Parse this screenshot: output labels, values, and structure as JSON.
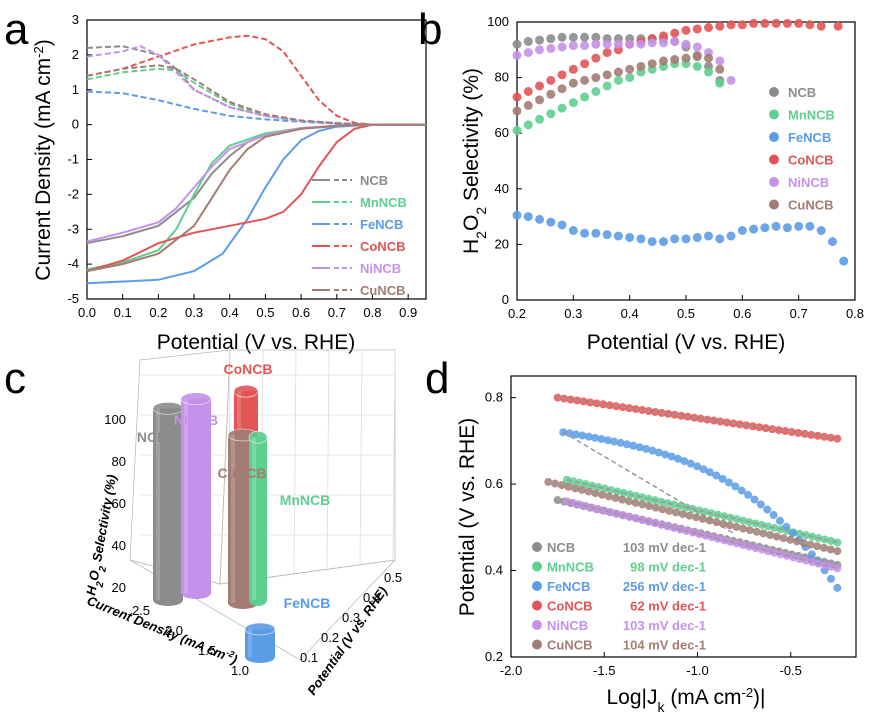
{
  "colors": {
    "NCB": "#8c8c8c",
    "MnNCB": "#5fcf8f",
    "FeNCB": "#5b9ce6",
    "CoNCB": "#e35454",
    "NiNCB": "#c591ea",
    "CuNCB": "#a37d73"
  },
  "chart_data": [
    {
      "panel": "a",
      "type": "line",
      "title": "",
      "xlabel": "Potential (V vs. RHE)",
      "ylabel": "Current Density (mA cm-2)",
      "xlim": [
        0.0,
        0.95
      ],
      "ylim": [
        -5,
        3
      ],
      "xticks": [
        "0.0",
        "0.1",
        "0.2",
        "0.3",
        "0.4",
        "0.5",
        "0.6",
        "0.7",
        "0.8",
        "0.9"
      ],
      "yticks": [
        "-5",
        "-4",
        "-3",
        "-2",
        "-1",
        "0",
        "1",
        "2",
        "3"
      ],
      "legend": [
        "NCB",
        "MnNCB",
        "FeNCB",
        "CoNCB",
        "NiNCB",
        "CuNCB"
      ],
      "series": [
        {
          "name": "NCB",
          "disk": [
            [
              0.0,
              -3.4
            ],
            [
              0.1,
              -3.2
            ],
            [
              0.2,
              -2.9
            ],
            [
              0.3,
              -2.1
            ],
            [
              0.35,
              -1.4
            ],
            [
              0.4,
              -0.9
            ],
            [
              0.45,
              -0.5
            ],
            [
              0.5,
              -0.3
            ],
            [
              0.6,
              -0.12
            ],
            [
              0.7,
              -0.04
            ],
            [
              0.8,
              0.0
            ],
            [
              0.95,
              0.0
            ]
          ],
          "ring": [
            [
              0.0,
              2.2
            ],
            [
              0.1,
              2.25
            ],
            [
              0.2,
              2.0
            ],
            [
              0.25,
              1.6
            ],
            [
              0.3,
              1.0
            ],
            [
              0.4,
              0.5
            ],
            [
              0.5,
              0.25
            ],
            [
              0.6,
              0.1
            ],
            [
              0.7,
              0.04
            ],
            [
              0.8,
              0.0
            ],
            [
              0.95,
              0.0
            ]
          ]
        },
        {
          "name": "MnNCB",
          "disk": [
            [
              0.0,
              -4.15
            ],
            [
              0.1,
              -3.95
            ],
            [
              0.2,
              -3.6
            ],
            [
              0.25,
              -3.0
            ],
            [
              0.3,
              -2.0
            ],
            [
              0.35,
              -1.1
            ],
            [
              0.4,
              -0.6
            ],
            [
              0.5,
              -0.25
            ],
            [
              0.6,
              -0.1
            ],
            [
              0.7,
              -0.03
            ],
            [
              0.8,
              0.0
            ],
            [
              0.95,
              0.0
            ]
          ],
          "ring": [
            [
              0.0,
              1.3
            ],
            [
              0.1,
              1.5
            ],
            [
              0.2,
              1.6
            ],
            [
              0.25,
              1.55
            ],
            [
              0.3,
              1.2
            ],
            [
              0.4,
              0.6
            ],
            [
              0.5,
              0.25
            ],
            [
              0.6,
              0.1
            ],
            [
              0.7,
              0.04
            ],
            [
              0.8,
              0.0
            ],
            [
              0.95,
              0.0
            ]
          ]
        },
        {
          "name": "FeNCB",
          "disk": [
            [
              0.0,
              -4.55
            ],
            [
              0.2,
              -4.45
            ],
            [
              0.3,
              -4.2
            ],
            [
              0.38,
              -3.7
            ],
            [
              0.45,
              -2.7
            ],
            [
              0.5,
              -1.8
            ],
            [
              0.55,
              -1.0
            ],
            [
              0.6,
              -0.45
            ],
            [
              0.65,
              -0.18
            ],
            [
              0.7,
              -0.06
            ],
            [
              0.8,
              0.0
            ],
            [
              0.95,
              0.0
            ]
          ],
          "ring": [
            [
              0.0,
              0.95
            ],
            [
              0.1,
              0.9
            ],
            [
              0.2,
              0.7
            ],
            [
              0.3,
              0.45
            ],
            [
              0.4,
              0.25
            ],
            [
              0.5,
              0.15
            ],
            [
              0.6,
              0.08
            ],
            [
              0.7,
              0.03
            ],
            [
              0.8,
              0.0
            ],
            [
              0.95,
              0.0
            ]
          ]
        },
        {
          "name": "CoNCB",
          "disk": [
            [
              0.0,
              -4.2
            ],
            [
              0.1,
              -3.9
            ],
            [
              0.2,
              -3.4
            ],
            [
              0.3,
              -3.1
            ],
            [
              0.4,
              -2.9
            ],
            [
              0.5,
              -2.7
            ],
            [
              0.55,
              -2.5
            ],
            [
              0.6,
              -2.0
            ],
            [
              0.65,
              -1.2
            ],
            [
              0.7,
              -0.5
            ],
            [
              0.75,
              -0.12
            ],
            [
              0.8,
              0.0
            ],
            [
              0.95,
              0.0
            ]
          ],
          "ring": [
            [
              0.0,
              1.4
            ],
            [
              0.1,
              1.6
            ],
            [
              0.2,
              1.95
            ],
            [
              0.3,
              2.3
            ],
            [
              0.4,
              2.5
            ],
            [
              0.45,
              2.55
            ],
            [
              0.5,
              2.45
            ],
            [
              0.55,
              2.1
            ],
            [
              0.6,
              1.4
            ],
            [
              0.65,
              0.7
            ],
            [
              0.7,
              0.25
            ],
            [
              0.75,
              0.05
            ],
            [
              0.8,
              0.0
            ],
            [
              0.95,
              0.0
            ]
          ]
        },
        {
          "name": "NiNCB",
          "disk": [
            [
              0.0,
              -3.35
            ],
            [
              0.1,
              -3.1
            ],
            [
              0.2,
              -2.8
            ],
            [
              0.25,
              -2.4
            ],
            [
              0.3,
              -1.8
            ],
            [
              0.35,
              -1.2
            ],
            [
              0.4,
              -0.7
            ],
            [
              0.5,
              -0.3
            ],
            [
              0.6,
              -0.1
            ],
            [
              0.7,
              -0.03
            ],
            [
              0.8,
              0.0
            ],
            [
              0.95,
              0.0
            ]
          ],
          "ring": [
            [
              0.0,
              1.95
            ],
            [
              0.1,
              2.1
            ],
            [
              0.15,
              2.25
            ],
            [
              0.2,
              2.0
            ],
            [
              0.25,
              1.5
            ],
            [
              0.3,
              1.0
            ],
            [
              0.4,
              0.5
            ],
            [
              0.5,
              0.25
            ],
            [
              0.6,
              0.1
            ],
            [
              0.7,
              0.03
            ],
            [
              0.8,
              0.0
            ],
            [
              0.95,
              0.0
            ]
          ]
        },
        {
          "name": "CuNCB",
          "disk": [
            [
              0.0,
              -4.2
            ],
            [
              0.1,
              -4.0
            ],
            [
              0.2,
              -3.7
            ],
            [
              0.3,
              -2.9
            ],
            [
              0.35,
              -2.1
            ],
            [
              0.4,
              -1.3
            ],
            [
              0.45,
              -0.7
            ],
            [
              0.5,
              -0.35
            ],
            [
              0.6,
              -0.12
            ],
            [
              0.7,
              -0.03
            ],
            [
              0.8,
              0.0
            ],
            [
              0.95,
              0.0
            ]
          ],
          "ring": [
            [
              0.0,
              1.4
            ],
            [
              0.1,
              1.6
            ],
            [
              0.2,
              1.7
            ],
            [
              0.25,
              1.6
            ],
            [
              0.3,
              1.3
            ],
            [
              0.4,
              0.65
            ],
            [
              0.5,
              0.3
            ],
            [
              0.6,
              0.12
            ],
            [
              0.7,
              0.04
            ],
            [
              0.8,
              0.0
            ],
            [
              0.95,
              0.0
            ]
          ]
        }
      ]
    },
    {
      "panel": "b",
      "type": "scatter",
      "title": "",
      "xlabel": "Potential (V vs. RHE)",
      "ylabel": "H2O2 Selectivity (%)",
      "xlim": [
        0.2,
        0.8
      ],
      "ylim": [
        0,
        100
      ],
      "xticks": [
        "0.2",
        "0.3",
        "0.4",
        "0.5",
        "0.6",
        "0.7",
        "0.8"
      ],
      "yticks": [
        "0",
        "20",
        "40",
        "60",
        "80",
        "100"
      ],
      "legend": [
        "NCB",
        "MnNCB",
        "FeNCB",
        "CoNCB",
        "NiNCB",
        "CuNCB"
      ],
      "series": [
        {
          "name": "NCB",
          "x": [
            0.2,
            0.22,
            0.24,
            0.26,
            0.28,
            0.3,
            0.32,
            0.34,
            0.36,
            0.38,
            0.4,
            0.42,
            0.44,
            0.46,
            0.48,
            0.5,
            0.52,
            0.54,
            0.56
          ],
          "y": [
            92,
            93,
            93.5,
            94,
            94.5,
            94.5,
            94.5,
            94.5,
            94,
            94,
            94,
            94,
            94,
            94,
            93,
            91,
            88,
            84,
            79
          ]
        },
        {
          "name": "MnNCB",
          "x": [
            0.2,
            0.22,
            0.24,
            0.26,
            0.28,
            0.3,
            0.32,
            0.34,
            0.36,
            0.38,
            0.4,
            0.42,
            0.44,
            0.46,
            0.48,
            0.5,
            0.52,
            0.54,
            0.56
          ],
          "y": [
            61,
            63,
            65,
            67,
            69,
            71,
            73,
            75,
            77,
            79,
            80,
            82,
            83,
            84,
            85,
            85,
            84,
            82,
            78
          ]
        },
        {
          "name": "FeNCB",
          "x": [
            0.2,
            0.22,
            0.24,
            0.26,
            0.28,
            0.3,
            0.32,
            0.34,
            0.36,
            0.38,
            0.4,
            0.42,
            0.44,
            0.46,
            0.48,
            0.5,
            0.52,
            0.54,
            0.56,
            0.58,
            0.6,
            0.62,
            0.64,
            0.66,
            0.68,
            0.7,
            0.72,
            0.74,
            0.76,
            0.78
          ],
          "y": [
            30.5,
            30,
            29,
            28,
            27,
            25,
            24,
            24,
            23.5,
            23,
            22.5,
            22,
            21,
            21,
            22,
            22,
            22.5,
            23,
            22,
            23,
            25,
            25.5,
            26,
            26.5,
            26,
            26.5,
            26.5,
            25,
            21,
            14
          ]
        },
        {
          "name": "CoNCB",
          "x": [
            0.2,
            0.22,
            0.24,
            0.26,
            0.28,
            0.3,
            0.32,
            0.34,
            0.36,
            0.38,
            0.4,
            0.42,
            0.44,
            0.46,
            0.48,
            0.5,
            0.52,
            0.54,
            0.56,
            0.58,
            0.6,
            0.62,
            0.64,
            0.66,
            0.68,
            0.7,
            0.72,
            0.74,
            0.77
          ],
          "y": [
            73,
            75,
            77,
            79,
            81,
            83,
            85,
            87,
            89,
            90,
            92,
            93,
            94,
            95,
            96,
            97,
            97.5,
            98,
            98.5,
            99,
            99,
            99.5,
            99.5,
            99.5,
            99.5,
            99.5,
            99,
            98.5,
            98.5
          ]
        },
        {
          "name": "NiNCB",
          "x": [
            0.2,
            0.22,
            0.24,
            0.26,
            0.28,
            0.3,
            0.32,
            0.34,
            0.36,
            0.38,
            0.4,
            0.42,
            0.44,
            0.46,
            0.48,
            0.5,
            0.52,
            0.54,
            0.56,
            0.58
          ],
          "y": [
            88,
            89,
            90,
            90.5,
            91,
            91.5,
            91.5,
            92,
            92,
            92,
            92,
            92,
            92.5,
            92.5,
            93,
            92,
            91,
            89,
            86,
            79
          ]
        },
        {
          "name": "CuNCB",
          "x": [
            0.2,
            0.22,
            0.24,
            0.26,
            0.28,
            0.3,
            0.32,
            0.34,
            0.36,
            0.38,
            0.4,
            0.42,
            0.44,
            0.46,
            0.48,
            0.5,
            0.52,
            0.54,
            0.56
          ],
          "y": [
            68,
            70,
            72,
            74,
            76,
            78,
            79,
            80,
            81,
            82,
            83,
            84,
            85,
            86,
            86.5,
            87,
            87.5,
            87,
            83
          ]
        }
      ]
    },
    {
      "panel": "c",
      "type": "bar",
      "title": "",
      "xlabel": "Current Density (mA cm-2)",
      "ylabel": "H2O2 Selectivity (%)",
      "zlabel": "Potential (V vs. RHE)",
      "current_ticks": [
        "1.0",
        "1.5",
        "2.0",
        "2.5"
      ],
      "selectivity_ticks": [
        "20",
        "40",
        "60",
        "80",
        "100"
      ],
      "potential_ticks": [
        "0.1",
        "0.2",
        "0.3",
        "0.4",
        "0.5"
      ],
      "bars": [
        {
          "name": "NCB",
          "selectivity": 93,
          "current_density": 2.3,
          "potential": 0.32
        },
        {
          "name": "MnNCB",
          "selectivity": 82,
          "current_density": 2.0,
          "potential": 0.5
        },
        {
          "name": "FeNCB",
          "selectivity": 30,
          "current_density": 0.95,
          "potential": 0.33
        },
        {
          "name": "CoNCB",
          "selectivity": 100,
          "current_density": 2.35,
          "potential": 0.48
        },
        {
          "name": "NiNCB",
          "selectivity": 94,
          "current_density": 2.2,
          "potential": 0.35
        },
        {
          "name": "CuNCB",
          "selectivity": 84,
          "current_density": 2.0,
          "potential": 0.45
        }
      ]
    },
    {
      "panel": "d",
      "type": "scatter",
      "title": "",
      "xlabel": "Log|Jk (mA cm-2)|",
      "ylabel": "Potential (V vs. RHE)",
      "xlim": [
        -2.0,
        -0.15
      ],
      "ylim": [
        0.2,
        0.85
      ],
      "xticks": [
        "-2.0",
        "-1.5",
        "-1.0",
        "-0.5"
      ],
      "yticks": [
        "0.2",
        "0.4",
        "0.6",
        "0.8"
      ],
      "series": [
        {
          "name": "NCB",
          "tafel": "103 mV dec-1",
          "x0": -1.75,
          "x1": -0.25,
          "y0": 0.563,
          "y1": 0.413
        },
        {
          "name": "MnNCB",
          "tafel": "98 mV dec-1",
          "x0": -1.7,
          "x1": -0.25,
          "y0": 0.61,
          "y1": 0.465
        },
        {
          "name": "FeNCB",
          "tafel": "256 mV dec-1",
          "x0": -1.72,
          "x1": -0.25,
          "y0": 0.72,
          "y1": 0.36
        },
        {
          "name": "CoNCB",
          "tafel": "62 mV dec-1",
          "x0": -1.75,
          "x1": -0.25,
          "y0": 0.8,
          "y1": 0.705
        },
        {
          "name": "NiNCB",
          "tafel": "103 mV dec-1",
          "x0": -1.7,
          "x1": -0.25,
          "y0": 0.56,
          "y1": 0.405
        },
        {
          "name": "CuNCB",
          "tafel": "104 mV dec-1",
          "x0": -1.8,
          "x1": -0.25,
          "y0": 0.605,
          "y1": 0.445
        }
      ]
    }
  ],
  "panels": {
    "a": "a",
    "b": "b",
    "c": "c",
    "d": "d"
  }
}
